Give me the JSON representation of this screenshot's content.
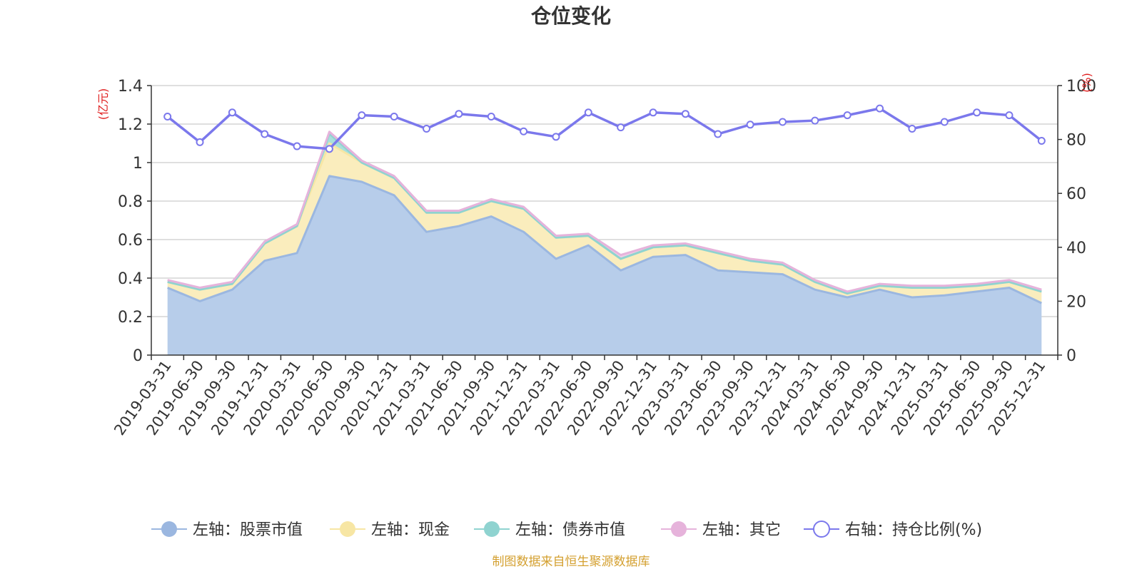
{
  "chart_data": {
    "type": "area",
    "title": "仓位变化",
    "source_note": "制图数据来自恒生聚源数据库",
    "left_axis": {
      "unit_label": "(亿元)",
      "min": 0,
      "max": 1.4,
      "ticks": [
        0,
        0.2,
        0.4,
        0.6,
        0.8,
        1,
        1.2,
        1.4
      ],
      "tick_labels": [
        "0",
        "0.2",
        "0.4",
        "0.6",
        "0.8",
        "1",
        "1.2",
        "1.4"
      ]
    },
    "right_axis": {
      "unit_label": "(%)",
      "min": 0,
      "max": 100,
      "ticks": [
        0,
        20,
        40,
        60,
        80,
        100
      ],
      "tick_labels": [
        "0",
        "20",
        "40",
        "60",
        "80",
        "100"
      ]
    },
    "categories": [
      "2019-03-31",
      "2019-06-30",
      "2019-09-30",
      "2019-12-31",
      "2020-03-31",
      "2020-06-30",
      "2020-09-30",
      "2020-12-31",
      "2021-03-31",
      "2021-06-30",
      "2021-09-30",
      "2021-12-31",
      "2022-03-31",
      "2022-06-30",
      "2022-09-30",
      "2022-12-31",
      "2023-03-31",
      "2023-06-30",
      "2023-09-30",
      "2023-12-31",
      "2024-03-31",
      "2024-06-30",
      "2024-09-30",
      "2024-12-31",
      "2025-03-31",
      "2025-06-30",
      "2025-09-30",
      "2025-12-31"
    ],
    "series": [
      {
        "name": "左轴：股票市值",
        "axis": "left",
        "color": "#9bb7e0",
        "fill": "#b7cdea",
        "values": [
          0.35,
          0.28,
          0.34,
          0.49,
          0.53,
          0.93,
          0.9,
          0.83,
          0.64,
          0.67,
          0.72,
          0.64,
          0.5,
          0.57,
          0.44,
          0.51,
          0.52,
          0.44,
          0.43,
          0.42,
          0.34,
          0.3,
          0.34,
          0.3,
          0.31,
          0.33,
          0.35,
          0.27
        ]
      },
      {
        "name": "左轴：现金",
        "axis": "left",
        "color": "#f7e6a4",
        "fill": "#faedbd",
        "values": [
          0.03,
          0.06,
          0.03,
          0.09,
          0.14,
          0.17,
          0.1,
          0.09,
          0.1,
          0.07,
          0.08,
          0.12,
          0.11,
          0.05,
          0.06,
          0.05,
          0.05,
          0.09,
          0.06,
          0.05,
          0.04,
          0.02,
          0.02,
          0.05,
          0.04,
          0.03,
          0.03,
          0.06
        ]
      },
      {
        "name": "左轴：债券市值",
        "axis": "left",
        "color": "#8fd3d0",
        "fill": "#a9dfdc",
        "values": [
          0,
          0,
          0,
          0,
          0,
          0.05,
          0,
          0,
          0,
          0,
          0,
          0,
          0,
          0,
          0,
          0,
          0,
          0,
          0,
          0,
          0,
          0,
          0,
          0,
          0,
          0,
          0,
          0
        ]
      },
      {
        "name": "左轴：其它",
        "axis": "left",
        "color": "#e6b3db",
        "fill": "#f0cce8",
        "values": [
          0.01,
          0.01,
          0.01,
          0.01,
          0.01,
          0.01,
          0.01,
          0.01,
          0.01,
          0.01,
          0.01,
          0.01,
          0.01,
          0.01,
          0.02,
          0.01,
          0.01,
          0.01,
          0.01,
          0.01,
          0.01,
          0.01,
          0.01,
          0.01,
          0.01,
          0.01,
          0.01,
          0.01
        ]
      },
      {
        "name": "右轴：持仓比例(%)",
        "axis": "right",
        "color": "#7b78ec",
        "values": [
          88.5,
          79,
          90,
          82,
          77.5,
          76.5,
          89,
          88.5,
          84,
          89.5,
          88.5,
          83,
          81,
          90,
          84.5,
          90,
          89.5,
          82,
          85.5,
          86.5,
          87,
          89,
          91.5,
          84,
          86.5,
          90,
          89,
          79.5
        ]
      }
    ]
  }
}
